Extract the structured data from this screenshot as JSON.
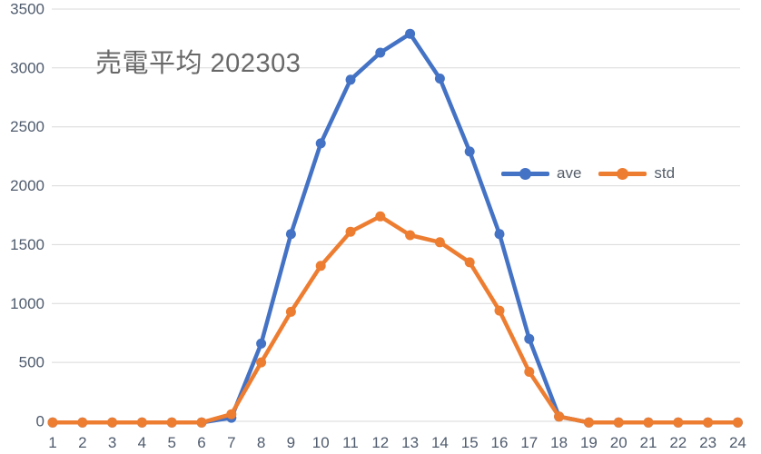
{
  "chart_data": {
    "type": "line",
    "title": "売電平均 202303",
    "x": [
      1,
      2,
      3,
      4,
      5,
      6,
      7,
      8,
      9,
      10,
      11,
      12,
      13,
      14,
      15,
      16,
      17,
      18,
      19,
      20,
      21,
      22,
      23,
      24
    ],
    "series": [
      {
        "name": "ave",
        "color": "#4472C4",
        "values": [
          -10,
          -10,
          -10,
          -10,
          -10,
          -10,
          30,
          660,
          1590,
          2360,
          2900,
          3130,
          3290,
          2910,
          2290,
          1590,
          700,
          40,
          -10,
          -10,
          -10,
          -10,
          -10,
          -10
        ]
      },
      {
        "name": "std",
        "color": "#ED7D31",
        "values": [
          -10,
          -10,
          -10,
          -10,
          -10,
          -10,
          60,
          500,
          930,
          1320,
          1610,
          1740,
          1580,
          1520,
          1350,
          940,
          420,
          40,
          -10,
          -10,
          -10,
          -10,
          -10,
          -10
        ]
      }
    ],
    "xlabel": "",
    "ylabel": "",
    "ylim": [
      0,
      3500
    ],
    "yticks": [
      0,
      500,
      1000,
      1500,
      2000,
      2500,
      3000,
      3500
    ],
    "grid": true,
    "legend_position": "middle-right",
    "colors": {
      "gridline": "#D9D9D9",
      "axis_text": "#4f5b6d",
      "title_text": "#686868",
      "legend_text": "#565e6a"
    }
  }
}
